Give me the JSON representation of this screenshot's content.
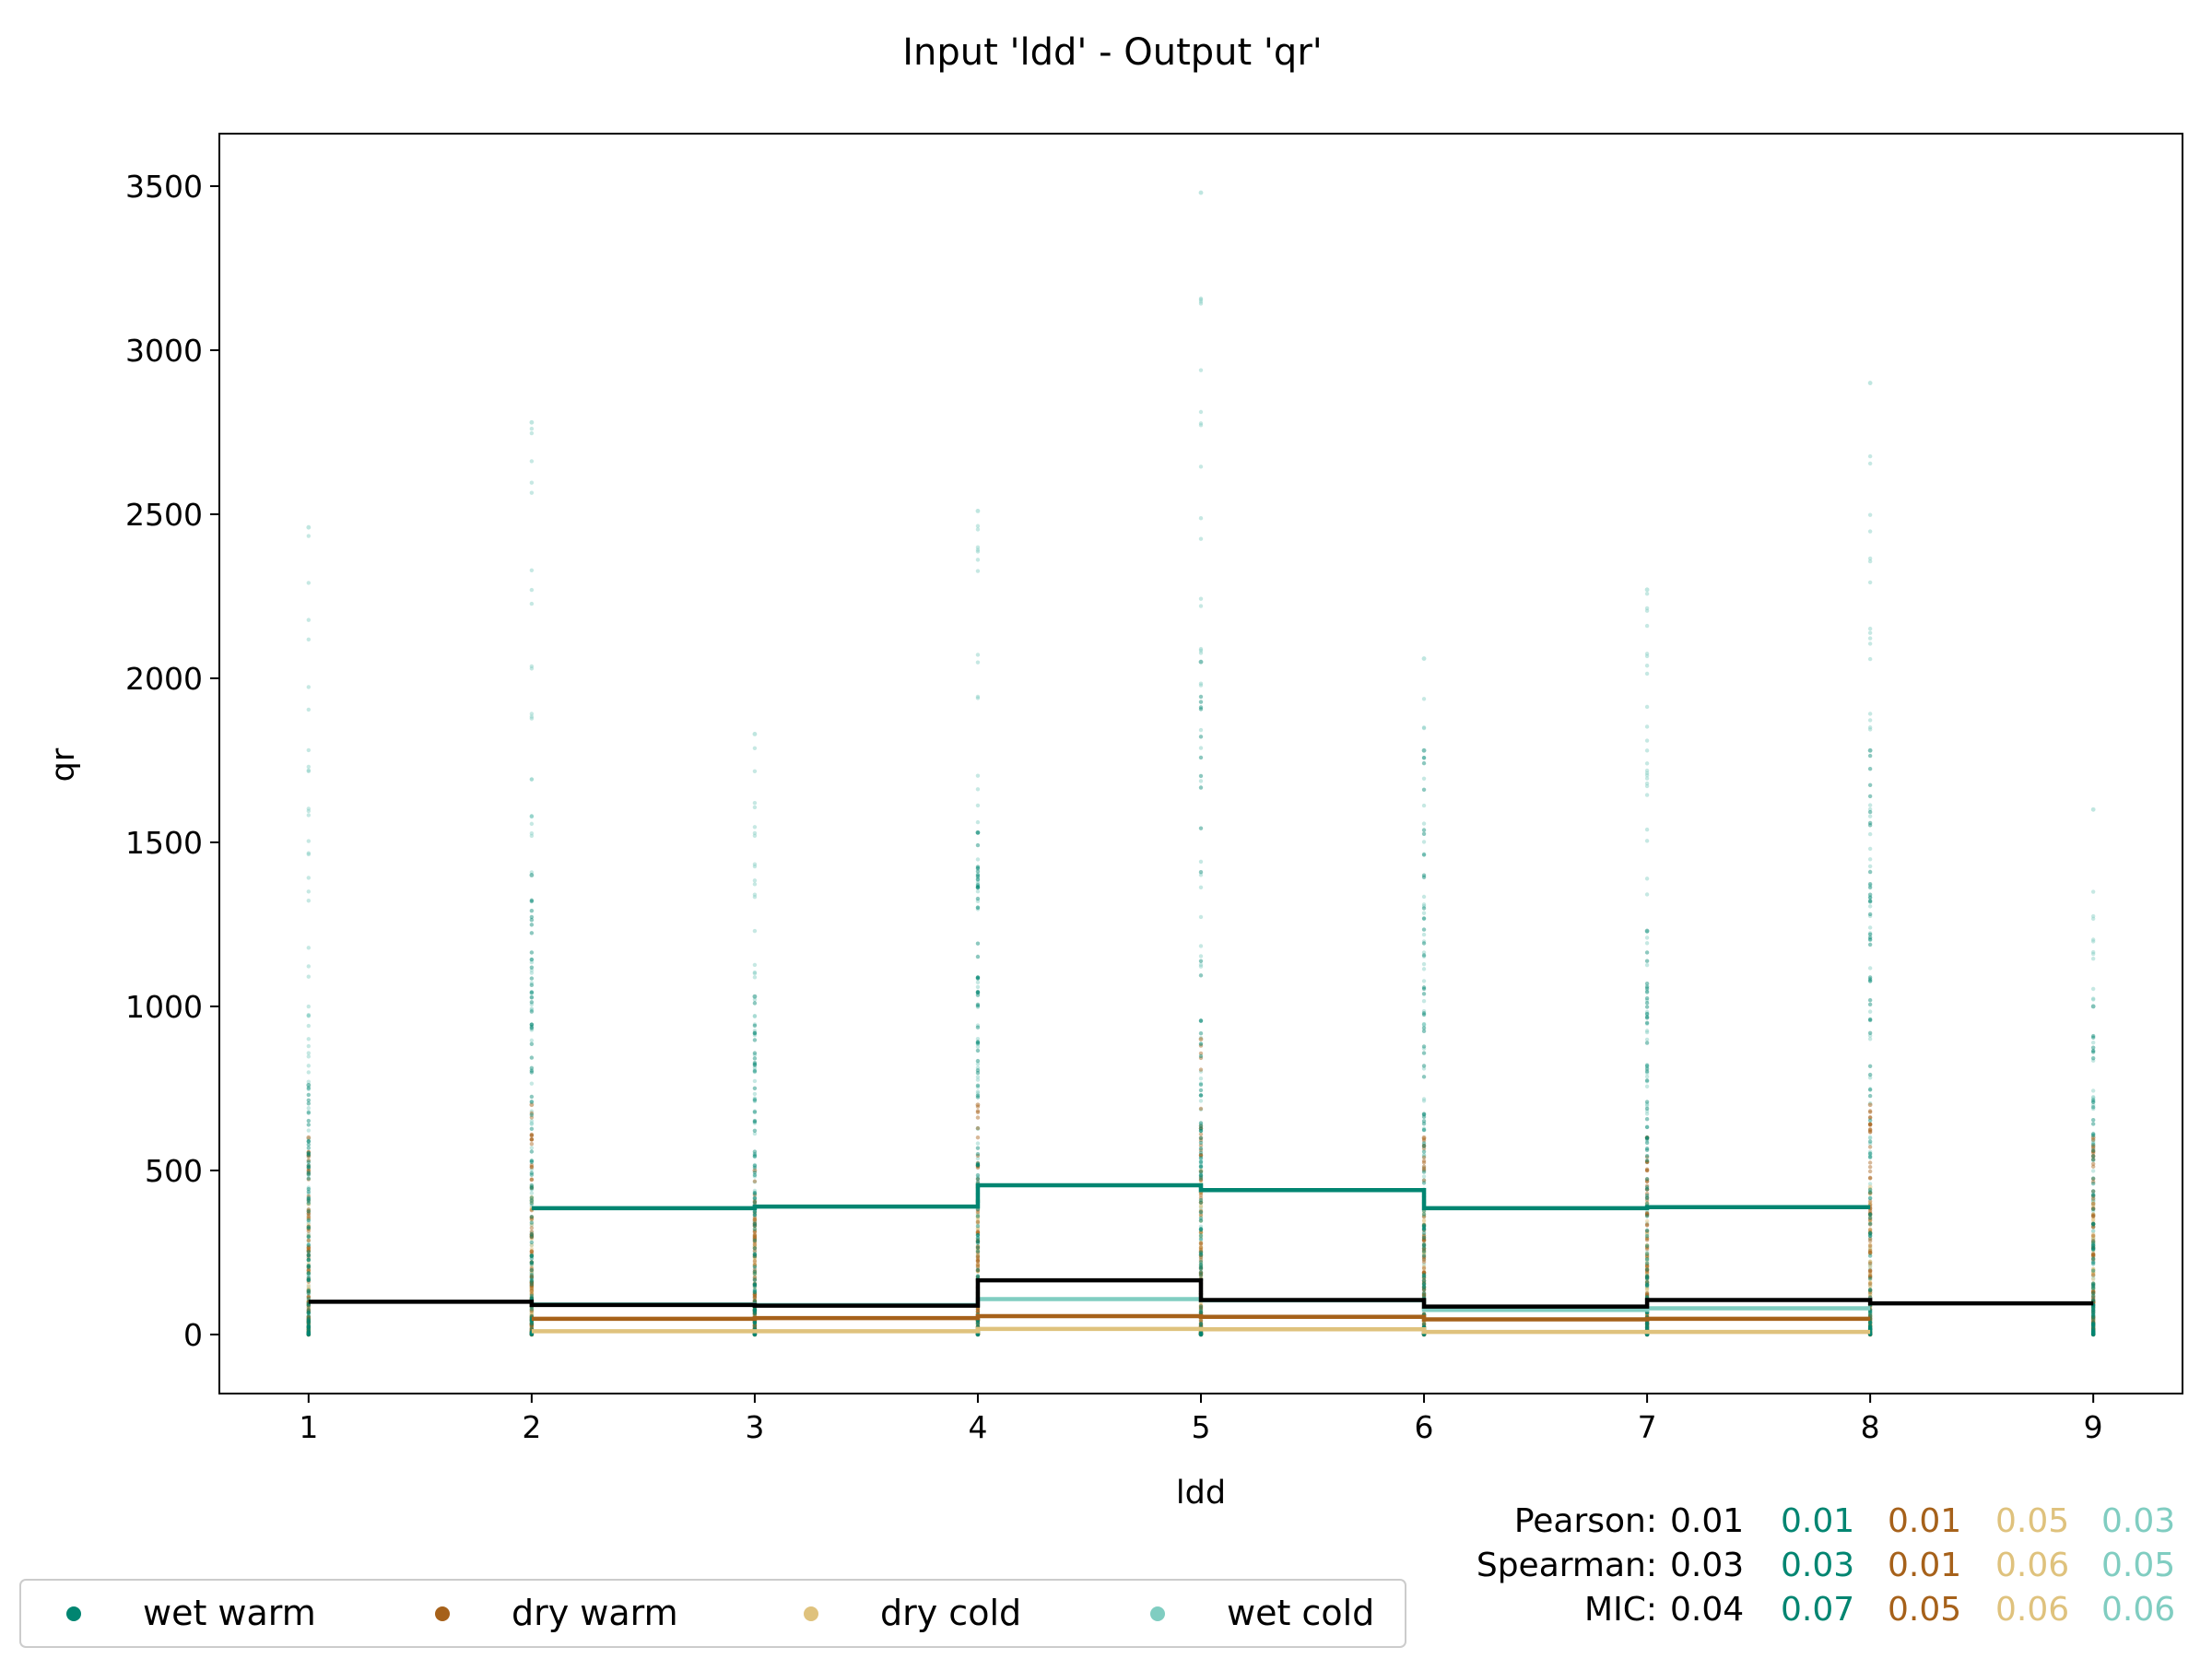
{
  "chart_data": {
    "type": "scatter",
    "title": "Input 'ldd' - Output 'qr'",
    "xlabel": "ldd",
    "ylabel": "qr",
    "xlim": [
      0.6,
      9.4
    ],
    "ylim": [
      -180,
      3660
    ],
    "x_ticks": [
      1,
      2,
      3,
      4,
      5,
      6,
      7,
      8,
      9
    ],
    "y_ticks": [
      0,
      500,
      1000,
      1500,
      2000,
      2500,
      3000,
      3500
    ],
    "grid": false,
    "legend_position": "bottom-left",
    "colors": {
      "overall": "#000000",
      "wet warm": "#018571",
      "dry warm": "#a6611a",
      "dry cold": "#dfc27d",
      "wet cold": "#80cdc1"
    },
    "series": [
      {
        "name": "wet warm",
        "points": [
          {
            "x": 1,
            "ymin": 0,
            "ymax": 760
          },
          {
            "x": 2,
            "ymin": 0,
            "ymax": 1400
          },
          {
            "x": 3,
            "ymin": 0,
            "ymax": 1030
          },
          {
            "x": 4,
            "ymin": 0,
            "ymax": 1530
          },
          {
            "x": 5,
            "ymin": 0,
            "ymax": 2050
          },
          {
            "x": 6,
            "ymin": 0,
            "ymax": 1780
          },
          {
            "x": 7,
            "ymin": 0,
            "ymax": 1230
          },
          {
            "x": 8,
            "ymin": 0,
            "ymax": 1780
          },
          {
            "x": 9,
            "ymin": 0,
            "ymax": 1000
          }
        ],
        "step_mean": [
          {
            "from": 2,
            "to": 3,
            "y": 385
          },
          {
            "from": 3,
            "to": 4,
            "y": 390
          },
          {
            "from": 4,
            "to": 5,
            "y": 455
          },
          {
            "from": 5,
            "to": 6,
            "y": 440
          },
          {
            "from": 6,
            "to": 7,
            "y": 385
          },
          {
            "from": 7,
            "to": 8,
            "y": 388
          }
        ]
      },
      {
        "name": "dry warm",
        "points": [
          {
            "x": 1,
            "ymin": 0,
            "ymax": 600
          },
          {
            "x": 2,
            "ymin": 0,
            "ymax": 700
          },
          {
            "x": 3,
            "ymin": 0,
            "ymax": 500
          },
          {
            "x": 4,
            "ymin": 0,
            "ymax": 700
          },
          {
            "x": 5,
            "ymin": 0,
            "ymax": 900
          },
          {
            "x": 6,
            "ymin": 0,
            "ymax": 600
          },
          {
            "x": 7,
            "ymin": 0,
            "ymax": 600
          },
          {
            "x": 8,
            "ymin": 0,
            "ymax": 700
          },
          {
            "x": 9,
            "ymin": 0,
            "ymax": 600
          }
        ],
        "step_mean": [
          {
            "from": 2,
            "to": 3,
            "y": 48
          },
          {
            "from": 3,
            "to": 4,
            "y": 50
          },
          {
            "from": 4,
            "to": 5,
            "y": 56
          },
          {
            "from": 5,
            "to": 6,
            "y": 54
          },
          {
            "from": 6,
            "to": 7,
            "y": 46
          },
          {
            "from": 7,
            "to": 8,
            "y": 48
          }
        ]
      },
      {
        "name": "dry cold",
        "points": [
          {
            "x": 1,
            "ymin": 0,
            "ymax": 400
          },
          {
            "x": 2,
            "ymin": 0,
            "ymax": 450
          },
          {
            "x": 3,
            "ymin": 0,
            "ymax": 350
          },
          {
            "x": 4,
            "ymin": 0,
            "ymax": 450
          },
          {
            "x": 5,
            "ymin": 0,
            "ymax": 500
          },
          {
            "x": 6,
            "ymin": 0,
            "ymax": 400
          },
          {
            "x": 7,
            "ymin": 0,
            "ymax": 400
          },
          {
            "x": 8,
            "ymin": 0,
            "ymax": 450
          },
          {
            "x": 9,
            "ymin": 0,
            "ymax": 400
          }
        ],
        "step_mean": [
          {
            "from": 2,
            "to": 3,
            "y": 10
          },
          {
            "from": 3,
            "to": 4,
            "y": 10
          },
          {
            "from": 4,
            "to": 5,
            "y": 17
          },
          {
            "from": 5,
            "to": 6,
            "y": 16
          },
          {
            "from": 6,
            "to": 7,
            "y": 8
          },
          {
            "from": 7,
            "to": 8,
            "y": 8
          }
        ]
      },
      {
        "name": "wet cold",
        "points": [
          {
            "x": 1,
            "ymin": 0,
            "ymax": 2460
          },
          {
            "x": 2,
            "ymin": 0,
            "ymax": 2780
          },
          {
            "x": 3,
            "ymin": 0,
            "ymax": 1830
          },
          {
            "x": 4,
            "ymin": 0,
            "ymax": 2510
          },
          {
            "x": 5,
            "ymin": 0,
            "ymax": 3480
          },
          {
            "x": 6,
            "ymin": 0,
            "ymax": 2060
          },
          {
            "x": 7,
            "ymin": 0,
            "ymax": 2270
          },
          {
            "x": 8,
            "ymin": 0,
            "ymax": 2900
          },
          {
            "x": 9,
            "ymin": 0,
            "ymax": 1600
          }
        ],
        "step_mean": [
          {
            "from": 2,
            "to": 3,
            "y": 92
          },
          {
            "from": 3,
            "to": 4,
            "y": 90
          },
          {
            "from": 4,
            "to": 5,
            "y": 108
          },
          {
            "from": 5,
            "to": 6,
            "y": 104
          },
          {
            "from": 6,
            "to": 7,
            "y": 75
          },
          {
            "from": 7,
            "to": 8,
            "y": 80
          }
        ]
      },
      {
        "name": "overall",
        "step_mean": [
          {
            "from": 1,
            "to": 2,
            "y": 100
          },
          {
            "from": 2,
            "to": 3,
            "y": 90
          },
          {
            "from": 3,
            "to": 4,
            "y": 88
          },
          {
            "from": 4,
            "to": 5,
            "y": 165
          },
          {
            "from": 5,
            "to": 6,
            "y": 105
          },
          {
            "from": 6,
            "to": 7,
            "y": 85
          },
          {
            "from": 7,
            "to": 8,
            "y": 105
          },
          {
            "from": 8,
            "to": 9,
            "y": 95
          }
        ]
      }
    ],
    "stats": [
      {
        "label": "Pearson:",
        "values": [
          "0.01",
          "0.01",
          "0.01",
          "0.05",
          "0.03"
        ]
      },
      {
        "label": "Spearman:",
        "values": [
          "0.03",
          "0.03",
          "0.01",
          "0.06",
          "0.05"
        ]
      },
      {
        "label": "MIC:",
        "values": [
          "0.04",
          "0.07",
          "0.05",
          "0.06",
          "0.06"
        ]
      }
    ],
    "legend": [
      "wet warm",
      "dry warm",
      "dry cold",
      "wet cold"
    ]
  }
}
